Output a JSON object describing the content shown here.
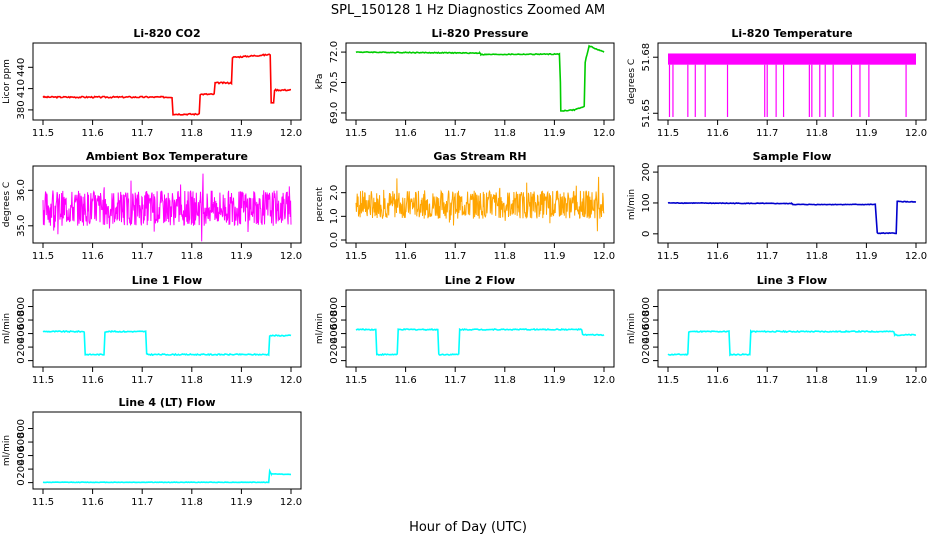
{
  "figure": {
    "title": "SPL_150128  1 Hz Diagnostics Zoomed AM",
    "xlabel": "Hour of Day (UTC)"
  },
  "chart_data": [
    {
      "type": "line",
      "title": "Li-820 CO2",
      "ylabel": "Licor ppm",
      "color": "#ff0000",
      "xlim": [
        11.5,
        12.0
      ],
      "ylim": [
        370,
        470
      ],
      "xticks": [
        "11.5",
        "11.6",
        "11.7",
        "11.8",
        "11.9",
        "12.0"
      ],
      "yticks": [
        380,
        410,
        440
      ],
      "x": [
        11.5,
        11.76,
        11.762,
        11.815,
        11.817,
        11.845,
        11.847,
        11.88,
        11.882,
        11.958,
        11.96,
        11.965,
        11.967,
        12.0
      ],
      "y": [
        398,
        398,
        374,
        374,
        402,
        402,
        418,
        418,
        454,
        458,
        390,
        390,
        408,
        408
      ],
      "noise": 1
    },
    {
      "type": "line",
      "title": "Li-820 Pressure",
      "ylabel": "kPa",
      "color": "#00cc00",
      "xlim": [
        11.5,
        12.0
      ],
      "ylim": [
        68.8,
        72.3
      ],
      "xticks": [
        "11.5",
        "11.6",
        "11.7",
        "11.8",
        "11.9",
        "12.0"
      ],
      "yticks": [
        "69.0",
        "70.5",
        "72.0"
      ],
      "ytick_values": [
        69.0,
        70.5,
        72.0
      ],
      "x": [
        11.5,
        11.75,
        11.752,
        11.91,
        11.912,
        11.913,
        11.94,
        11.945,
        11.96,
        11.962,
        11.97,
        12.0
      ],
      "y": [
        72.0,
        71.95,
        71.88,
        71.9,
        70.5,
        69.1,
        69.15,
        69.2,
        69.3,
        71.5,
        72.3,
        72.0
      ],
      "noise": 0.02
    },
    {
      "type": "line",
      "title": "Li-820 Temperature",
      "ylabel": "degrees C",
      "color": "#ff00ff",
      "xlim": [
        11.5,
        12.0
      ],
      "ylim": [
        51.648,
        51.686
      ],
      "xticks": [
        "11.5",
        "11.6",
        "11.7",
        "11.8",
        "11.9",
        "12.0"
      ],
      "yticks": [
        "51.65",
        "51.68"
      ],
      "ytick_values": [
        51.65,
        51.68
      ],
      "band": [
        51.676,
        51.682
      ],
      "spikes_x": [
        11.503,
        11.51,
        11.54,
        11.555,
        11.575,
        11.62,
        11.695,
        11.7,
        11.718,
        11.733,
        11.785,
        11.79,
        11.806,
        11.817,
        11.833,
        11.87,
        11.887,
        11.905,
        11.98
      ],
      "spike_bottom": 51.648
    },
    {
      "type": "line",
      "title": "Ambient Box Temperature",
      "ylabel": "degrees C",
      "color": "#ff00ff",
      "xlim": [
        11.5,
        12.0
      ],
      "ylim": [
        34.6,
        36.6
      ],
      "xticks": [
        "11.5",
        "11.6",
        "11.7",
        "11.8",
        "11.9",
        "12.0"
      ],
      "yticks": [
        "35.0",
        "36.0"
      ],
      "ytick_values": [
        35.0,
        36.0
      ],
      "mean": 35.5,
      "noise": 0.5
    },
    {
      "type": "line",
      "title": "Gas Stream RH",
      "ylabel": "percent",
      "color": "#ffa500",
      "xlim": [
        11.5,
        12.0
      ],
      "ylim": [
        0,
        3.0
      ],
      "xticks": [
        "11.5",
        "11.6",
        "11.7",
        "11.8",
        "11.9",
        "12.0"
      ],
      "yticks": [
        "0.0",
        "1.0",
        "2.0"
      ],
      "ytick_values": [
        0,
        1.0,
        2.0
      ],
      "mean": 1.5,
      "noise": 0.6
    },
    {
      "type": "line",
      "title": "Sample Flow",
      "ylabel": "ml/min",
      "color": "#0000cc",
      "xlim": [
        11.5,
        12.0
      ],
      "ylim": [
        -20,
        210
      ],
      "xticks": [
        "11.5",
        "11.6",
        "11.7",
        "11.8",
        "11.9",
        "12.0"
      ],
      "yticks": [
        0,
        100,
        200
      ],
      "x": [
        11.5,
        11.75,
        11.752,
        11.918,
        11.922,
        11.96,
        11.962,
        12.0
      ],
      "y": [
        100,
        98,
        95,
        95,
        2,
        2,
        105,
        103
      ],
      "noise": 1
    },
    {
      "type": "line",
      "title": "Line 1 Flow",
      "ylabel": "ml/min",
      "color": "#00ffff",
      "xlim": [
        11.5,
        12.0
      ],
      "ylim": [
        -50,
        1000
      ],
      "xticks": [
        "11.5",
        "11.6",
        "11.7",
        "11.8",
        "11.9",
        "12.0"
      ],
      "yticks": [
        0,
        200,
        400,
        600,
        800
      ],
      "x": [
        11.5,
        11.583,
        11.585,
        11.623,
        11.625,
        11.707,
        11.709,
        11.955,
        11.957,
        12.0
      ],
      "y": [
        430,
        430,
        90,
        90,
        430,
        430,
        90,
        90,
        370,
        370
      ],
      "noise": 8
    },
    {
      "type": "line",
      "title": "Line 2 Flow",
      "ylabel": "ml/min",
      "color": "#00ffff",
      "xlim": [
        11.5,
        12.0
      ],
      "ylim": [
        -50,
        1000
      ],
      "xticks": [
        "11.5",
        "11.6",
        "11.7",
        "11.8",
        "11.9",
        "12.0"
      ],
      "yticks": [
        0,
        200,
        400,
        600,
        800
      ],
      "x": [
        11.5,
        11.54,
        11.542,
        11.583,
        11.585,
        11.665,
        11.667,
        11.707,
        11.709,
        11.955,
        11.957,
        12.0
      ],
      "y": [
        460,
        460,
        90,
        90,
        460,
        460,
        90,
        90,
        460,
        460,
        380,
        380
      ],
      "noise": 8
    },
    {
      "type": "line",
      "title": "Line 3 Flow",
      "ylabel": "ml/min",
      "color": "#00ffff",
      "xlim": [
        11.5,
        12.0
      ],
      "ylim": [
        -50,
        1000
      ],
      "xticks": [
        "11.5",
        "11.6",
        "11.7",
        "11.8",
        "11.9",
        "12.0"
      ],
      "yticks": [
        0,
        200,
        400,
        600,
        800
      ],
      "x": [
        11.5,
        11.54,
        11.542,
        11.623,
        11.625,
        11.665,
        11.667,
        11.955,
        11.957,
        12.0
      ],
      "y": [
        90,
        90,
        430,
        430,
        90,
        90,
        430,
        430,
        380,
        380
      ],
      "noise": 8
    },
    {
      "type": "line",
      "title": "Line 4 (LT) Flow",
      "ylabel": "ml/min",
      "color": "#00ffff",
      "xlim": [
        11.5,
        12.0
      ],
      "ylim": [
        -50,
        1000
      ],
      "xticks": [
        "11.5",
        "11.6",
        "11.7",
        "11.8",
        "11.9",
        "12.0"
      ],
      "yticks": [
        0,
        200,
        400,
        600,
        800
      ],
      "x": [
        11.5,
        11.955,
        11.957,
        11.96,
        12.0
      ],
      "y": [
        5,
        5,
        170,
        130,
        120
      ],
      "noise": 3
    }
  ]
}
